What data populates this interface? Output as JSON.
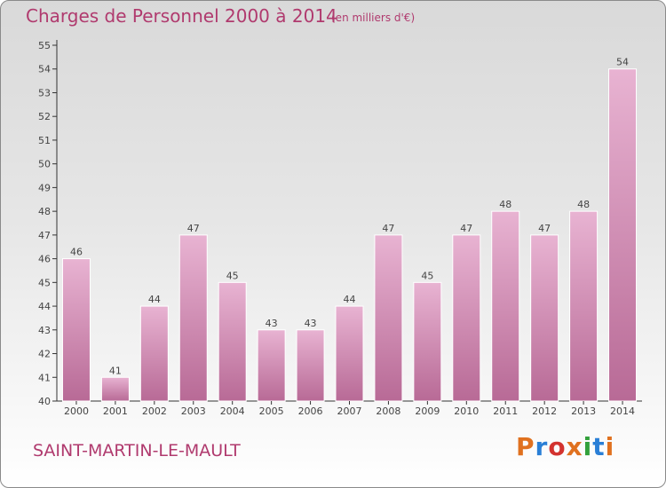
{
  "header": {
    "title": "Charges de Personnel 2000 à 2014",
    "subtitle": "(en milliers d'€)"
  },
  "footer": {
    "city": "SAINT-MARTIN-LE-MAULT",
    "logo": "Proxiti",
    "logo_colors": [
      "#e0711f",
      "#2a7fd6",
      "#d3332f",
      "#e0711f",
      "#33a13c",
      "#2a7fd6",
      "#e0711f"
    ]
  },
  "colors": {
    "bar_top": "#e8b3d2",
    "bar_bottom": "#b86a96",
    "bar_edge": "#ffffff",
    "axis": "#333333",
    "text": "#444444",
    "accent": "#b03a6e"
  },
  "chart_data": {
    "type": "bar",
    "title": "Charges de Personnel 2000 à 2014",
    "subtitle": "(en milliers d'€)",
    "categories": [
      "2000",
      "2001",
      "2002",
      "2003",
      "2004",
      "2005",
      "2006",
      "2007",
      "2008",
      "2009",
      "2010",
      "2011",
      "2012",
      "2013",
      "2014"
    ],
    "values": [
      46,
      41,
      44,
      47,
      45,
      43,
      43,
      44,
      47,
      45,
      47,
      48,
      47,
      48,
      54
    ],
    "ylim": [
      40,
      55
    ],
    "yticks": [
      40,
      41,
      42,
      43,
      44,
      45,
      46,
      47,
      48,
      49,
      50,
      51,
      52,
      53,
      54,
      55
    ],
    "grid": false,
    "data_labels": true
  }
}
